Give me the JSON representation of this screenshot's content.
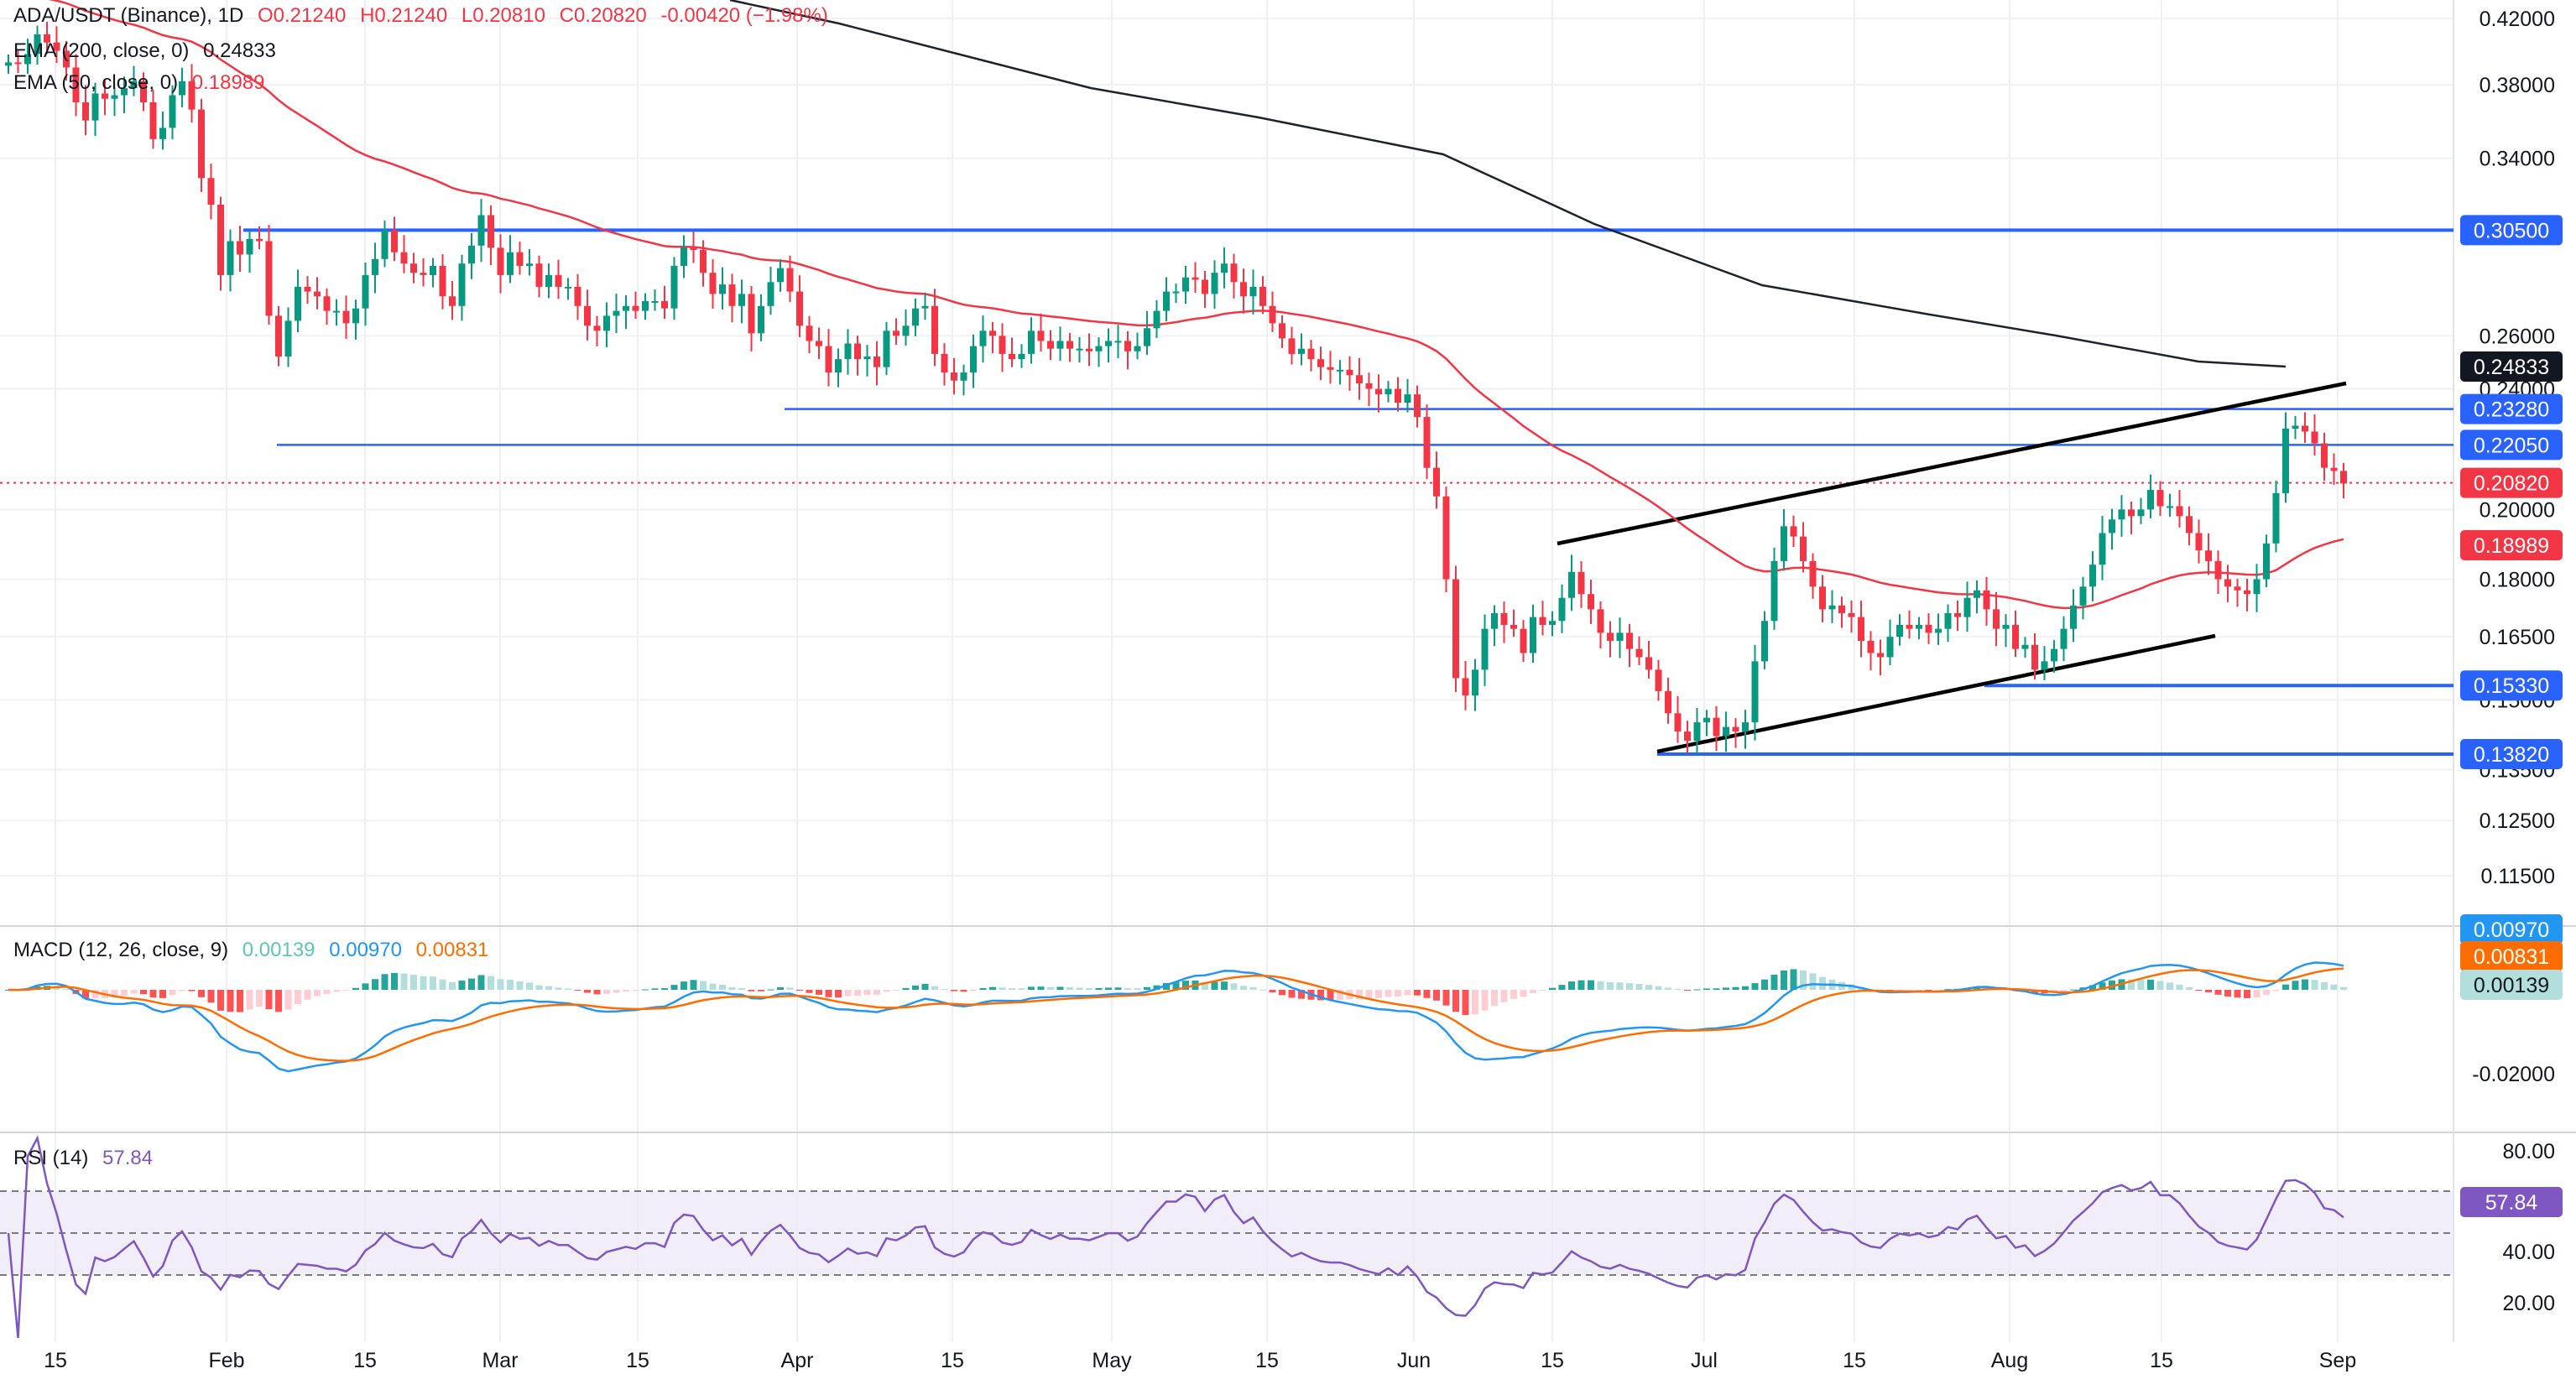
{
  "header": {
    "symbol": "ADA/USDT (Binance), 1D",
    "open": "O0.21240",
    "high": "H0.21240",
    "low": "L0.20810",
    "close": "C0.20820",
    "change": "-0.00420 (−1.98%)"
  },
  "indicators": {
    "ema200_label": "EMA (200, close, 0)",
    "ema200_value": "0.24833",
    "ema50_label": "EMA (50, close, 0)",
    "ema50_value": "0.18989",
    "macd_label": "MACD (12, 26, close, 9)",
    "macd_hist": "0.00139",
    "macd_line": "0.00970",
    "macd_signal": "0.00831",
    "rsi_label": "RSI (14)",
    "rsi_value": "57.84"
  },
  "colors": {
    "up": "#089981",
    "down": "#f23645",
    "ema200": "#1e222d",
    "ema50": "#f23645",
    "level": "#2962ff",
    "macd": "#2196f3",
    "signal": "#ff6d00",
    "rsi": "#7e57c2"
  },
  "chart_data": {
    "type": "candlestick",
    "price_axis": {
      "ticks": [
        "0.42000",
        "0.38000",
        "0.34000",
        "0.26000",
        "0.24000",
        "0.20000",
        "0.18000",
        "0.16500",
        "0.15000",
        "0.13500",
        "0.12500",
        "0.11500"
      ],
      "scale": "log",
      "range": [
        0.108,
        0.43
      ]
    },
    "time_axis": [
      "15",
      "Feb",
      "15",
      "Mar",
      "15",
      "Apr",
      "15",
      "May",
      "15",
      "Jun",
      "15",
      "Jul",
      "15",
      "Aug",
      "15",
      "Sep"
    ],
    "levels": [
      {
        "label": "0.30500",
        "value": 0.305
      },
      {
        "label": "0.23280",
        "value": 0.2328
      },
      {
        "label": "0.22050",
        "value": 0.2205
      },
      {
        "label": "0.15330",
        "value": 0.1533
      },
      {
        "label": "0.13820",
        "value": 0.1382
      }
    ],
    "current_price": {
      "label": "0.20820",
      "value": 0.2082
    },
    "ema200_tag": "0.24833",
    "ema50_tag": "0.18989",
    "closes": [
      0.393,
      0.392,
      0.398,
      0.41,
      0.405,
      0.4,
      0.39,
      0.37,
      0.36,
      0.375,
      0.372,
      0.374,
      0.378,
      0.382,
      0.37,
      0.35,
      0.356,
      0.374,
      0.382,
      0.366,
      0.33,
      0.317,
      0.285,
      0.3,
      0.294,
      0.301,
      0.3,
      0.268,
      0.252,
      0.266,
      0.28,
      0.278,
      0.276,
      0.27,
      0.27,
      0.265,
      0.271,
      0.285,
      0.292,
      0.305,
      0.295,
      0.29,
      0.286,
      0.285,
      0.289,
      0.276,
      0.272,
      0.29,
      0.298,
      0.312,
      0.297,
      0.285,
      0.295,
      0.289,
      0.29,
      0.28,
      0.285,
      0.28,
      0.28,
      0.272,
      0.264,
      0.262,
      0.268,
      0.27,
      0.272,
      0.27,
      0.274,
      0.274,
      0.271,
      0.289,
      0.297,
      0.296,
      0.286,
      0.277,
      0.281,
      0.272,
      0.277,
      0.261,
      0.272,
      0.282,
      0.288,
      0.278,
      0.264,
      0.258,
      0.256,
      0.246,
      0.251,
      0.257,
      0.251,
      0.252,
      0.248,
      0.262,
      0.26,
      0.264,
      0.271,
      0.272,
      0.253,
      0.246,
      0.243,
      0.246,
      0.256,
      0.262,
      0.26,
      0.253,
      0.251,
      0.253,
      0.262,
      0.258,
      0.255,
      0.258,
      0.255,
      0.255,
      0.254,
      0.256,
      0.258,
      0.258,
      0.254,
      0.256,
      0.263,
      0.27,
      0.278,
      0.278,
      0.284,
      0.283,
      0.277,
      0.286,
      0.29,
      0.282,
      0.276,
      0.28,
      0.272,
      0.265,
      0.259,
      0.253,
      0.255,
      0.251,
      0.248,
      0.247,
      0.247,
      0.245,
      0.242,
      0.24,
      0.238,
      0.24,
      0.235,
      0.238,
      0.23,
      0.213,
      0.204,
      0.18,
      0.155,
      0.151,
      0.157,
      0.167,
      0.171,
      0.168,
      0.167,
      0.161,
      0.17,
      0.168,
      0.169,
      0.175,
      0.182,
      0.176,
      0.172,
      0.166,
      0.164,
      0.166,
      0.162,
      0.16,
      0.157,
      0.152,
      0.147,
      0.143,
      0.141,
      0.145,
      0.146,
      0.142,
      0.144,
      0.143,
      0.145,
      0.159,
      0.169,
      0.185,
      0.195,
      0.192,
      0.185,
      0.178,
      0.172,
      0.173,
      0.171,
      0.17,
      0.164,
      0.161,
      0.16,
      0.165,
      0.168,
      0.167,
      0.168,
      0.166,
      0.167,
      0.171,
      0.17,
      0.175,
      0.177,
      0.172,
      0.167,
      0.168,
      0.162,
      0.163,
      0.157,
      0.159,
      0.162,
      0.167,
      0.173,
      0.178,
      0.184,
      0.193,
      0.197,
      0.2,
      0.198,
      0.2,
      0.206,
      0.201,
      0.201,
      0.198,
      0.193,
      0.188,
      0.185,
      0.18,
      0.178,
      0.177,
      0.176,
      0.18,
      0.19,
      0.205,
      0.226,
      0.227,
      0.225,
      0.221,
      0.213,
      0.212,
      0.208
    ]
  }
}
